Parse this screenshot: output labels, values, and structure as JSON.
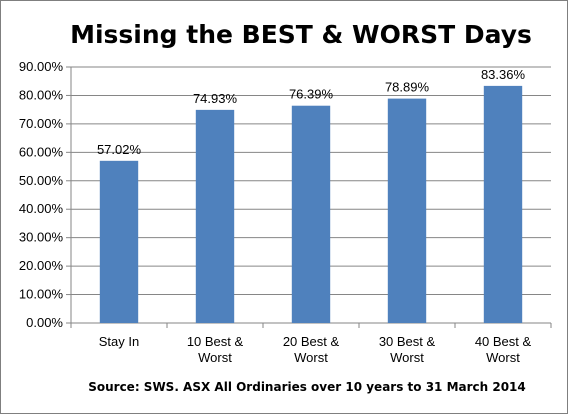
{
  "chart_data": {
    "type": "bar",
    "title": "Missing the BEST & WORST Days",
    "categories": [
      [
        "Stay In"
      ],
      [
        "10 Best &",
        "Worst"
      ],
      [
        "20 Best &",
        "Worst"
      ],
      [
        "30 Best &",
        "Worst"
      ],
      [
        "40 Best &",
        "Worst"
      ]
    ],
    "values": [
      57.02,
      74.93,
      76.39,
      78.89,
      83.36
    ],
    "data_labels": [
      "57.02%",
      "74.93%",
      "76.39%",
      "78.89%",
      "83.36%"
    ],
    "y_ticks": [
      "0.00%",
      "10.00%",
      "20.00%",
      "30.00%",
      "40.00%",
      "50.00%",
      "60.00%",
      "70.00%",
      "80.00%",
      "90.00%"
    ],
    "ylim": [
      0,
      90
    ],
    "grid": true,
    "legend": "none",
    "bar_color": "#4f81bd",
    "source": "Source: SWS. ASX All Ordinaries  over 10 years to 31 March 2014"
  }
}
